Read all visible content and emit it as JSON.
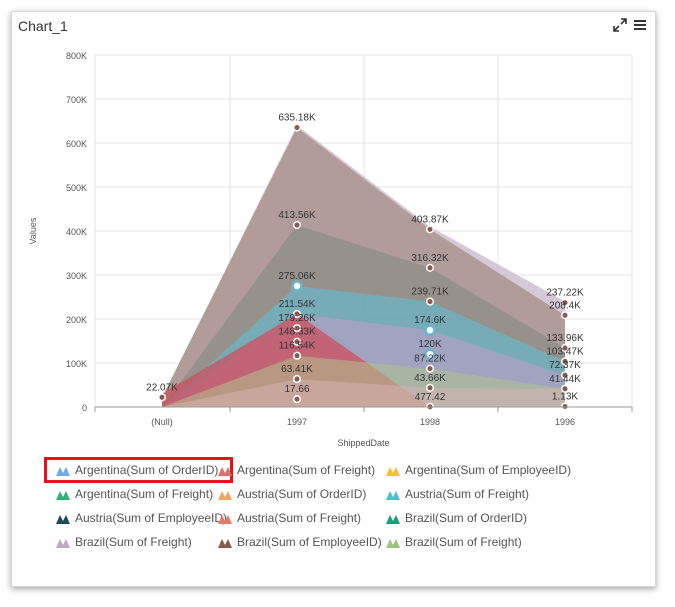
{
  "header": {
    "title": "Chart_1",
    "expand_icon": "expand-icon",
    "menu_icon": "hamburger-menu-icon"
  },
  "chart_data": {
    "type": "area",
    "categories": [
      "(Null)",
      "1997",
      "1998",
      "1996"
    ],
    "xlabel": "ShippedDate",
    "ylabel": "Values",
    "ylim": [
      0,
      800000
    ],
    "yticks": [
      "0",
      "100K",
      "200K",
      "300K",
      "400K",
      "500K",
      "600K",
      "700K",
      "800K"
    ],
    "grid": true,
    "legend_position": "bottom",
    "series": [
      {
        "name": "Argentina(Sum of OrderID)",
        "color": "#6faae8",
        "values": [
          0,
          0,
          0,
          0
        ]
      },
      {
        "name": "Argentina(Sum of Freight)",
        "color": "#e06c6c",
        "values": [
          0,
          0,
          0,
          0
        ]
      },
      {
        "name": "Argentina(Sum of EmployeeID)",
        "color": "#f5c232",
        "values": [
          0,
          0,
          0,
          0
        ]
      },
      {
        "name": "Argentina(Sum of Freight)",
        "color": "#2bb37a",
        "values": [
          0,
          0,
          0,
          0
        ]
      },
      {
        "name": "Austria(Sum of OrderID)",
        "color": "#f0a95c",
        "values": [
          0,
          0,
          0,
          0
        ]
      },
      {
        "name": "Austria(Sum of Freight)",
        "color": "#52bdd1",
        "values": [
          0,
          0,
          0,
          0
        ]
      },
      {
        "name": "Austria(Sum of EmployeeID)",
        "color": "#1b4b5c",
        "values": [
          0,
          0,
          0,
          0
        ]
      },
      {
        "name": "Austria(Sum of Freight)",
        "color": "#e37a64",
        "values": [
          0,
          0,
          0,
          0
        ]
      },
      {
        "name": "Brazil(Sum of OrderID)",
        "color": "#1a9e7c",
        "values": [
          0,
          275060,
          174600,
          72370
        ]
      },
      {
        "name": "Brazil(Sum of Freight)",
        "color": "#c3a5c9",
        "values": [
          0,
          148330,
          239710,
          237220
        ]
      },
      {
        "name": "Brazil(Sum of EmployeeID)",
        "color": "#8b5a4e",
        "values": [
          22070,
          635180,
          403870,
          208400
        ]
      },
      {
        "name": "Brazil(Sum of Freight)",
        "color": "#99c47a",
        "values": [
          0,
          116540,
          120000,
          41440
        ]
      }
    ],
    "visible_labels": [
      {
        "text": "22.07K",
        "x": "(Null)",
        "y": 22070
      },
      {
        "text": "635.18K",
        "x": "1997",
        "y": 635180
      },
      {
        "text": "413.56K",
        "x": "1997",
        "y": 413560
      },
      {
        "text": "275.06K",
        "x": "1997",
        "y": 275060
      },
      {
        "text": "211.54K",
        "x": "1997",
        "y": 211540
      },
      {
        "text": "179.26K",
        "x": "1997",
        "y": 179260
      },
      {
        "text": "148.33K",
        "x": "1997",
        "y": 148330
      },
      {
        "text": "116.54K",
        "x": "1997",
        "y": 116540
      },
      {
        "text": "63.41K",
        "x": "1997",
        "y": 63410
      },
      {
        "text": "17.66",
        "x": "1997",
        "y": 17660
      },
      {
        "text": "403.87K",
        "x": "1998",
        "y": 403870
      },
      {
        "text": "316.32K",
        "x": "1998",
        "y": 316320
      },
      {
        "text": "239.71K",
        "x": "1998",
        "y": 239710
      },
      {
        "text": "174.6K",
        "x": "1998",
        "y": 174600
      },
      {
        "text": "120K",
        "x": "1998",
        "y": 120000
      },
      {
        "text": "87.22K",
        "x": "1998",
        "y": 87220
      },
      {
        "text": "43.66K",
        "x": "1998",
        "y": 43660
      },
      {
        "text": "477.42",
        "x": "1998",
        "y": 477
      },
      {
        "text": "237.22K",
        "x": "1996",
        "y": 237220
      },
      {
        "text": "208.4K",
        "x": "1996",
        "y": 208400
      },
      {
        "text": "133.96K",
        "x": "1996",
        "y": 133960
      },
      {
        "text": "103.47K",
        "x": "1996",
        "y": 103470
      },
      {
        "text": "72.37K",
        "x": "1996",
        "y": 72370
      },
      {
        "text": "41.44K",
        "x": "1996",
        "y": 41440
      },
      {
        "text": "1.13K",
        "x": "1996",
        "y": 1130
      }
    ]
  },
  "stacked_areas": [
    {
      "color": "#c8b6cc",
      "opacity": 0.75,
      "values": [
        20000,
        640000,
        410000,
        240000
      ]
    },
    {
      "color": "#a48e83",
      "opacity": 0.75,
      "values": [
        22070,
        635180,
        403870,
        208400
      ]
    },
    {
      "color": "#7f8a7f",
      "opacity": 0.55,
      "values": [
        0,
        413560,
        316320,
        133960
      ]
    },
    {
      "color": "#6ab6c9",
      "opacity": 0.7,
      "values": [
        0,
        275060,
        239710,
        103470
      ]
    },
    {
      "color": "#c39ec9",
      "opacity": 0.55,
      "values": [
        0,
        211540,
        174600,
        72370
      ]
    },
    {
      "color": "#cc4f5c",
      "opacity": 0.75,
      "values": [
        30000,
        211540,
        0,
        0
      ]
    },
    {
      "color": "#b0c38c",
      "opacity": 0.55,
      "values": [
        0,
        116540,
        87220,
        41440
      ]
    },
    {
      "color": "#d9b4b4",
      "opacity": 0.5,
      "values": [
        0,
        63410,
        43660,
        41440
      ]
    }
  ],
  "legend": {
    "items": [
      {
        "label": "Argentina(Sum of OrderID)",
        "color": "#6faae8",
        "icon": "triangle-marker-icon"
      },
      {
        "label": "Argentina(Sum of Freight)",
        "color": "#e06c6c",
        "icon": "triangle-marker-icon"
      },
      {
        "label": "Argentina(Sum of EmployeeID)",
        "color": "#f5c232",
        "icon": "triangle-marker-icon"
      },
      {
        "label": "Argentina(Sum of Freight)",
        "color": "#2bb37a",
        "icon": "triangle-marker-icon"
      },
      {
        "label": "Austria(Sum of OrderID)",
        "color": "#f0a95c",
        "icon": "triangle-marker-icon"
      },
      {
        "label": "Austria(Sum of Freight)",
        "color": "#52bdd1",
        "icon": "triangle-marker-icon"
      },
      {
        "label": "Austria(Sum of EmployeeID)",
        "color": "#1b4b5c",
        "icon": "triangle-marker-icon"
      },
      {
        "label": "Austria(Sum of Freight)",
        "color": "#e37a64",
        "icon": "triangle-marker-icon"
      },
      {
        "label": "Brazil(Sum of OrderID)",
        "color": "#1a9e7c",
        "icon": "triangle-marker-icon"
      },
      {
        "label": "Brazil(Sum of Freight)",
        "color": "#c3a5c9",
        "icon": "triangle-marker-icon"
      },
      {
        "label": "Brazil(Sum of EmployeeID)",
        "color": "#8b5a4e",
        "icon": "triangle-marker-icon"
      },
      {
        "label": "Brazil(Sum of Freight)",
        "color": "#99c47a",
        "icon": "triangle-marker-icon"
      }
    ],
    "highlight_color": "#e8111c"
  }
}
